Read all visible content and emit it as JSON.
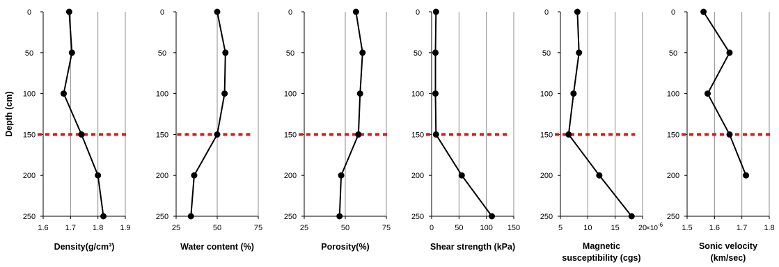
{
  "figure": {
    "ylabel": "Depth (cm)",
    "reference_line_color": "#e8141a"
  },
  "chart_data": [
    {
      "type": "line",
      "xlabel": "Density(g/cm³)",
      "xlim": [
        1.6,
        1.9
      ],
      "xticks": [
        "1.6",
        "1.7",
        "1.8",
        "1.9"
      ],
      "ylim": [
        0,
        250
      ],
      "yticks": [
        "0",
        "50",
        "100",
        "150",
        "200",
        "250"
      ],
      "y_inverted": true,
      "grid": "vertical",
      "series": [
        {
          "x": [
            1.695,
            1.705,
            1.675,
            1.74,
            1.8,
            1.82
          ],
          "y": [
            0,
            50,
            100,
            150,
            200,
            250
          ]
        }
      ],
      "reference_line": {
        "y": 150,
        "x_from": 1.6,
        "x_to": 1.9
      }
    },
    {
      "type": "line",
      "xlabel": "Water content (%)",
      "xlim": [
        25,
        75
      ],
      "xticks": [
        "25",
        "50",
        "75"
      ],
      "ylim": [
        0,
        250
      ],
      "yticks": [
        "0",
        "50",
        "100",
        "150",
        "200",
        "250"
      ],
      "y_inverted": true,
      "grid": "vertical",
      "series": [
        {
          "x": [
            50,
            55,
            54.5,
            50,
            36,
            34
          ],
          "y": [
            0,
            50,
            100,
            150,
            200,
            250
          ]
        }
      ],
      "reference_line": {
        "y": 150,
        "x_from": 29,
        "x_to": 70
      }
    },
    {
      "type": "line",
      "xlabel": "Porosity(%)",
      "xlim": [
        25,
        75
      ],
      "xticks": [
        "25",
        "50",
        "75"
      ],
      "ylim": [
        0,
        250
      ],
      "yticks": [
        "0",
        "50",
        "100",
        "150",
        "200",
        "250"
      ],
      "y_inverted": true,
      "grid": "vertical",
      "series": [
        {
          "x": [
            56.5,
            60.5,
            59,
            58,
            47.5,
            46.5
          ],
          "y": [
            0,
            50,
            100,
            150,
            200,
            250
          ]
        }
      ],
      "reference_line": {
        "y": 150,
        "x_from": 25,
        "x_to": 75
      }
    },
    {
      "type": "line",
      "xlabel": "Shear strength (kPa)",
      "xlim": [
        0,
        150
      ],
      "xticks": [
        "0",
        "50",
        "100",
        "150"
      ],
      "ylim": [
        0,
        250
      ],
      "yticks": [
        "0",
        "50",
        "100",
        "150",
        "200",
        "250"
      ],
      "y_inverted": true,
      "grid": "vertical",
      "series": [
        {
          "x": [
            8,
            7,
            7,
            8,
            55,
            110
          ],
          "y": [
            0,
            50,
            100,
            150,
            200,
            250
          ]
        }
      ],
      "reference_line": {
        "y": 150,
        "x_from": 0,
        "x_to": 140
      }
    },
    {
      "type": "line",
      "xlabel": "Magnetic susceptibility (cgs)",
      "xlabel_lines": [
        "Magnetic",
        "susceptibility (cgs)"
      ],
      "axis_unit": "×10",
      "axis_unit_exp": "-6",
      "xlim": [
        5,
        20
      ],
      "xticks": [
        "5",
        "10",
        "15",
        "20"
      ],
      "ylim": [
        0,
        250
      ],
      "yticks": [
        "0",
        "50",
        "100",
        "150",
        "200",
        "250"
      ],
      "y_inverted": true,
      "grid": "vertical",
      "series": [
        {
          "x": [
            8.1,
            8.4,
            7.4,
            6.5,
            12.1,
            18
          ],
          "y": [
            0,
            50,
            100,
            150,
            200,
            250
          ]
        }
      ],
      "reference_line": {
        "y": 150,
        "x_from": 5,
        "x_to": 18.5
      }
    },
    {
      "type": "line",
      "xlabel": "Sonic velocity (km/sec)",
      "xlabel_lines": [
        "Sonic velocity",
        "(km/sec)"
      ],
      "xlim": [
        1.5,
        1.8
      ],
      "xticks": [
        "1.5",
        "1.6",
        "1.7",
        "1.8"
      ],
      "ylim": [
        0,
        250
      ],
      "yticks": [
        "0",
        "50",
        "100",
        "150",
        "200",
        "250"
      ],
      "y_inverted": true,
      "grid": "vertical",
      "series": [
        {
          "x": [
            1.56,
            1.655,
            1.575,
            1.655,
            1.715
          ],
          "y": [
            0,
            50,
            100,
            150,
            200
          ]
        }
      ],
      "reference_line": {
        "y": 150,
        "x_from": 1.5,
        "x_to": 1.8
      }
    }
  ]
}
